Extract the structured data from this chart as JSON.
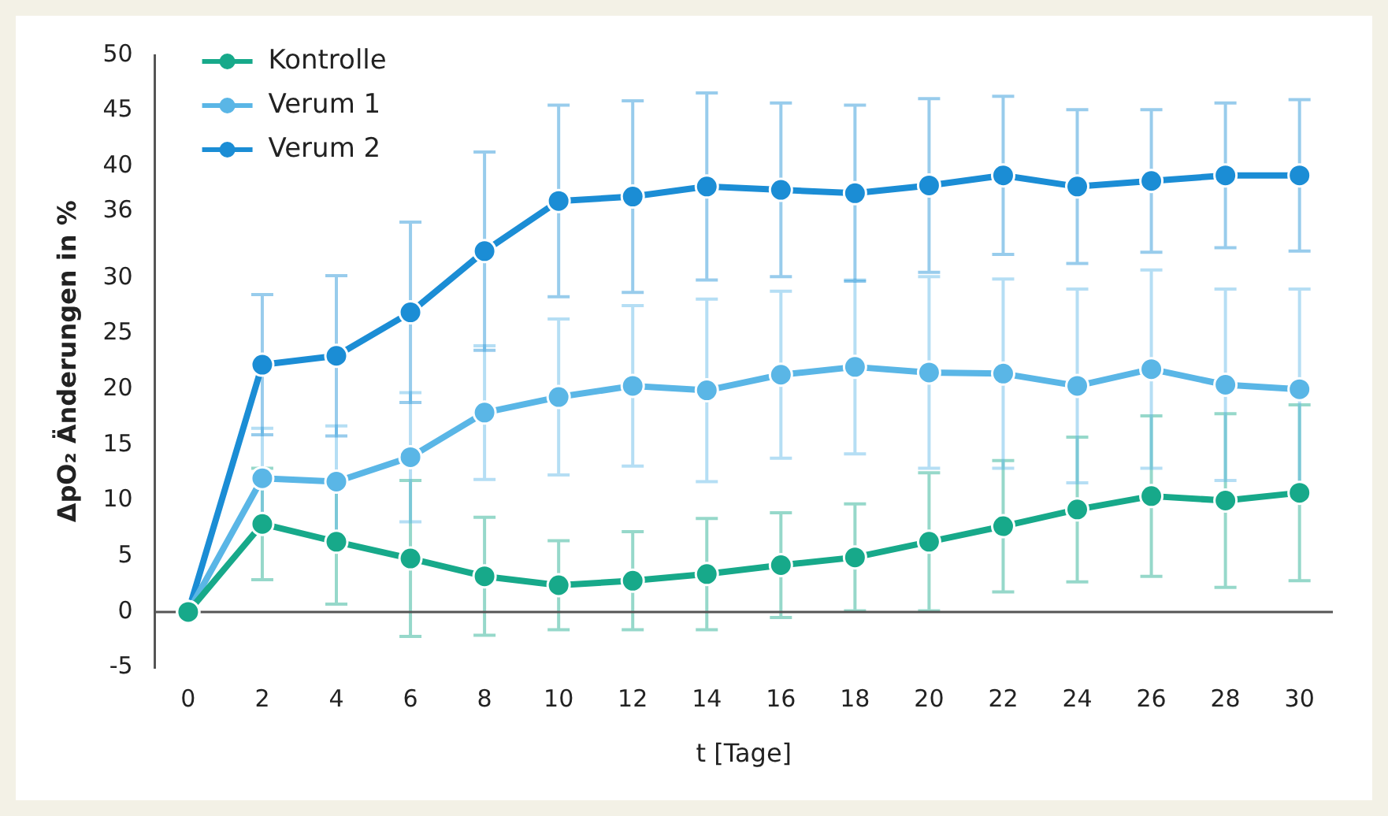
{
  "chart_data": {
    "type": "line",
    "xlabel": "t [Tage]",
    "ylabel": "ΔpO₂ Änderungen in %",
    "x": [
      0,
      2,
      4,
      6,
      8,
      10,
      12,
      14,
      16,
      18,
      20,
      22,
      24,
      26,
      28,
      30
    ],
    "xlim": [
      -0.9,
      30.9
    ],
    "xticks": [
      0,
      2,
      4,
      6,
      8,
      10,
      12,
      14,
      16,
      18,
      20,
      22,
      24,
      26,
      28,
      30
    ],
    "ylim": [
      -5,
      50
    ],
    "yticks": [
      -5,
      0,
      5,
      10,
      15,
      20,
      25,
      30,
      36,
      40,
      45,
      50
    ],
    "grid": false,
    "legend": "top left",
    "marker": "circle",
    "line_style": "solid",
    "ref_lines": [
      {
        "axis": "y",
        "value": 0,
        "color": "#555555"
      }
    ],
    "series": [
      {
        "name": "Kontrolle",
        "color": "#17a98a",
        "values": [
          0,
          7.9,
          6.3,
          4.8,
          3.2,
          2.4,
          2.8,
          3.4,
          4.2,
          4.9,
          6.3,
          7.7,
          9.2,
          10.4,
          10,
          10.7
        ],
        "errors": [
          null,
          5,
          5.6,
          7,
          5.3,
          4,
          4.4,
          5,
          4.7,
          4.8,
          6.2,
          5.9,
          6.5,
          7.2,
          7.8,
          7.9
        ]
      },
      {
        "name": "Verum 1",
        "color": "#5ab6e6",
        "values": [
          0,
          12,
          11.7,
          13.9,
          17.9,
          19.3,
          20.3,
          19.9,
          21.3,
          22,
          21.5,
          21.4,
          20.3,
          21.8,
          20.4,
          20
        ],
        "errors": [
          null,
          4.5,
          5,
          5.8,
          6,
          7,
          7.2,
          8.2,
          7.5,
          7.8,
          8.6,
          8.5,
          8.7,
          8.9,
          8.6,
          9
        ]
      },
      {
        "name": "Verum 2",
        "color": "#1b8dd5",
        "values": [
          0,
          22.2,
          23,
          26.9,
          32.4,
          36.9,
          37.3,
          38.2,
          37.9,
          37.6,
          38.3,
          39.2,
          38.2,
          38.7,
          39.2,
          39.2
        ],
        "errors": [
          null,
          6.3,
          7.2,
          8.1,
          8.9,
          8.6,
          8.6,
          8.4,
          7.8,
          7.9,
          7.8,
          7.1,
          6.9,
          6.4,
          6.5,
          6.8
        ]
      }
    ]
  }
}
